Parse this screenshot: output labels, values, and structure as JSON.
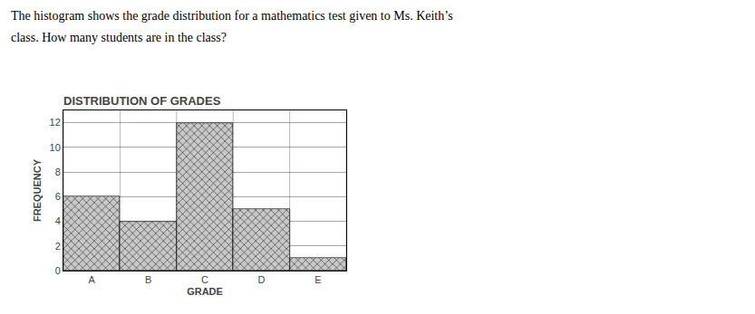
{
  "chart_data": {
    "type": "bar",
    "title": "DISTRIBUTION OF GRADES",
    "annotations": [
      "The histogram shows the grade distribution for a mathematics test given to Ms. Keith’s",
      "class. How many students are in the class?"
    ],
    "xlabel": "GRADE",
    "ylabel": "FREQUENCY",
    "categories": [
      "A",
      "B",
      "C",
      "D",
      "E"
    ],
    "values": [
      6,
      4,
      12,
      5,
      1
    ],
    "color": "#c8c8c8",
    "ylim": [
      0,
      13
    ],
    "yticks": [
      0,
      2,
      4,
      6,
      8,
      10,
      12
    ],
    "grid": true
  }
}
